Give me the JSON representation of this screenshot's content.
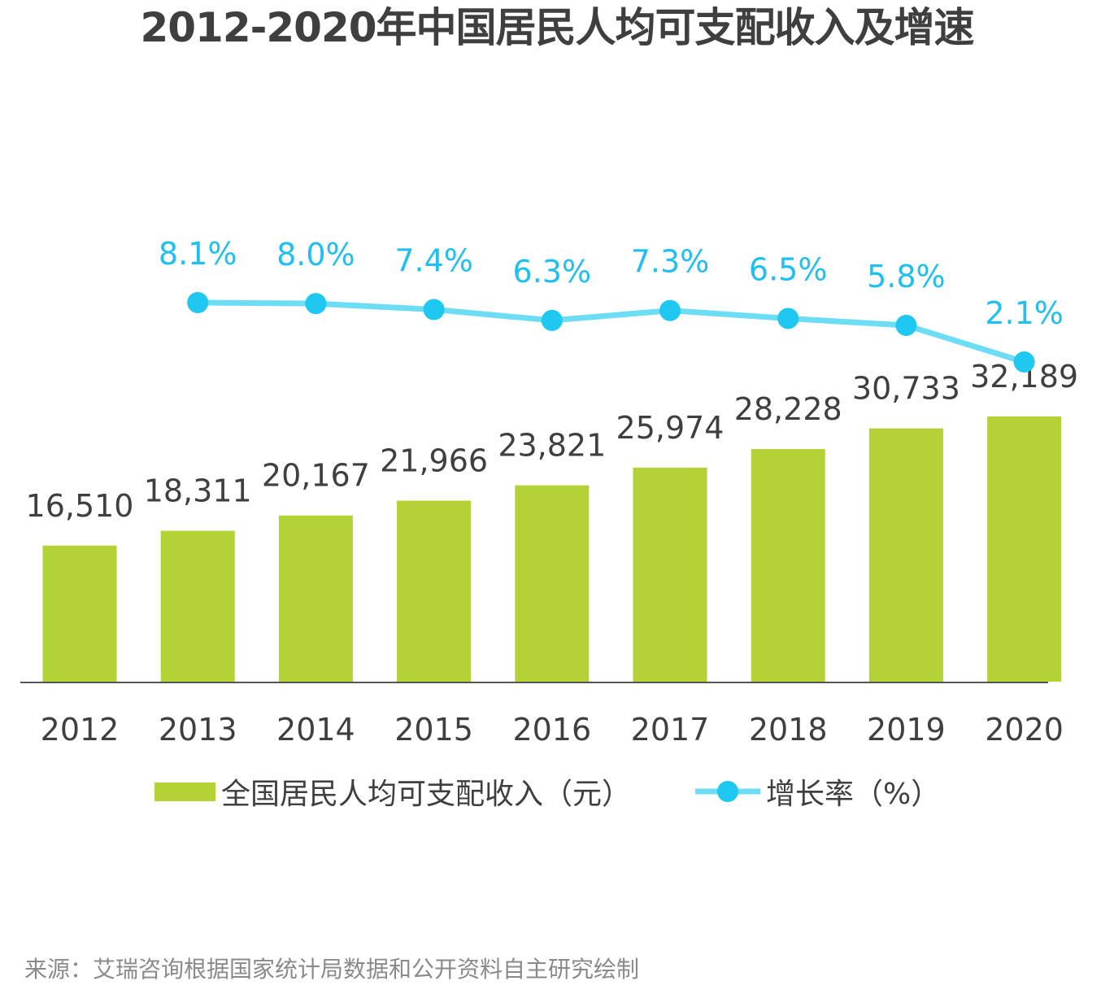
{
  "chart_data": {
    "type": "bar+line",
    "title": "2012-2020年中国居民人均可支配收入及增速",
    "categories": [
      "2012",
      "2013",
      "2014",
      "2015",
      "2016",
      "2017",
      "2018",
      "2019",
      "2020"
    ],
    "series": [
      {
        "name": "全国居民人均可支配收入（元）",
        "type": "bar",
        "color": "#b2d235",
        "values": [
          16510,
          18311,
          20167,
          21966,
          23821,
          25974,
          28228,
          30733,
          32189
        ],
        "labels": [
          "16,510",
          "18,311",
          "20,167",
          "21,966",
          "23,821",
          "25,974",
          "28,228",
          "30,733",
          "32,189"
        ]
      },
      {
        "name": "增长率（%）",
        "type": "line",
        "color": "#6ddcf5",
        "marker_color": "#1ec8f0",
        "values": [
          null,
          8.1,
          8.0,
          7.4,
          6.3,
          7.3,
          6.5,
          5.8,
          2.1
        ],
        "labels": [
          "",
          "8.1%",
          "8.0%",
          "7.4%",
          "6.3%",
          "7.3%",
          "6.5%",
          "5.8%",
          "2.1%"
        ]
      }
    ],
    "grid": false,
    "legend": "bottom",
    "source": "来源：艾瑞咨询根据国家统计局数据和公开资料自主研究绘制"
  }
}
